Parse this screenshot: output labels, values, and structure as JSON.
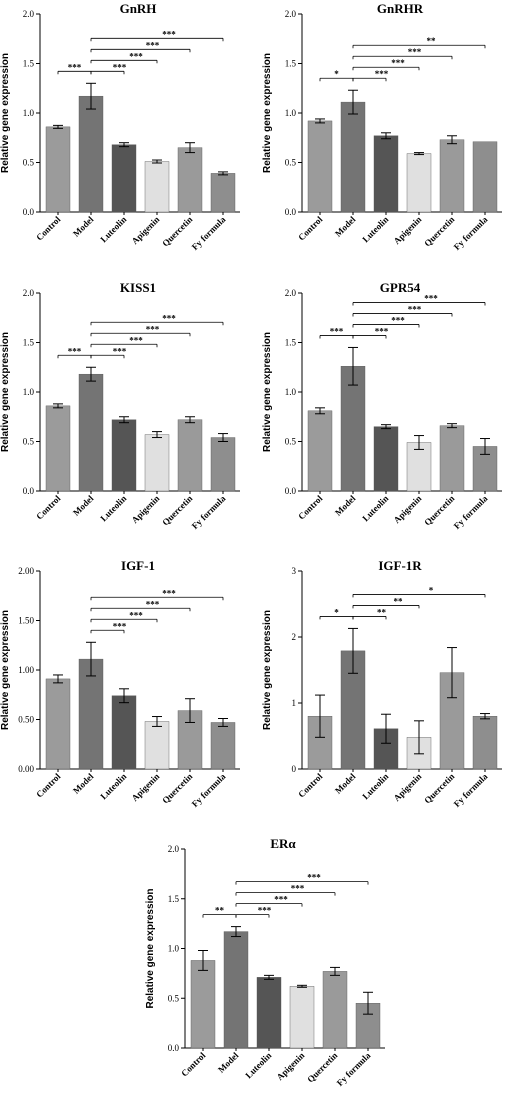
{
  "figure": "Gene expression panels",
  "chart_data": [
    {
      "type": "bar",
      "title": "GnRH",
      "ylabel": "Relative gene expression",
      "categories": [
        "Control",
        "Model",
        "Luteolin",
        "Apigenin",
        "Quercetin",
        "Fy formula"
      ],
      "values": [
        0.86,
        1.17,
        0.68,
        0.51,
        0.65,
        0.39
      ],
      "errors": [
        0.015,
        0.13,
        0.02,
        0.015,
        0.05,
        0.015
      ],
      "colors": [
        "#9b9b9b",
        "#747474",
        "#555555",
        "#e0e0e0",
        "#9a9a9a",
        "#8e8e8e"
      ],
      "ylim": [
        0,
        2.0
      ],
      "yticks": [
        "0.0",
        "0.5",
        "1.0",
        "1.5",
        "2.0"
      ],
      "ytick_values": [
        0,
        0.5,
        1.0,
        1.5,
        2.0
      ],
      "significance": [
        {
          "from": 0,
          "to": 1,
          "label": "***"
        },
        {
          "from": 1,
          "to": 2,
          "label": "***"
        },
        {
          "from": 1,
          "to": 3,
          "label": "***"
        },
        {
          "from": 1,
          "to": 4,
          "label": "***"
        },
        {
          "from": 1,
          "to": 5,
          "label": "***"
        }
      ]
    },
    {
      "type": "bar",
      "title": "GnRHR",
      "ylabel": "Relative gene expression",
      "categories": [
        "Control",
        "Model",
        "Luteolin",
        "Apigenin",
        "Quercetin",
        "Fy formula"
      ],
      "values": [
        0.92,
        1.11,
        0.77,
        0.59,
        0.73,
        0.71
      ],
      "errors": [
        0.02,
        0.12,
        0.03,
        0.01,
        0.04,
        0.0
      ],
      "colors": [
        "#9b9b9b",
        "#747474",
        "#555555",
        "#e0e0e0",
        "#9a9a9a",
        "#8e8e8e"
      ],
      "ylim": [
        0,
        2.0
      ],
      "yticks": [
        "0.0",
        "0.5",
        "1.0",
        "1.5",
        "2.0"
      ],
      "ytick_values": [
        0,
        0.5,
        1.0,
        1.5,
        2.0
      ],
      "significance": [
        {
          "from": 0,
          "to": 1,
          "label": "*"
        },
        {
          "from": 1,
          "to": 2,
          "label": "***"
        },
        {
          "from": 1,
          "to": 3,
          "label": "***"
        },
        {
          "from": 1,
          "to": 4,
          "label": "***"
        },
        {
          "from": 1,
          "to": 5,
          "label": "**"
        }
      ]
    },
    {
      "type": "bar",
      "title": "KISS1",
      "ylabel": "Relative gene expression",
      "categories": [
        "Control",
        "Model",
        "Luteolin",
        "Apigenin",
        "Quercetin",
        "Fy formula"
      ],
      "values": [
        0.86,
        1.18,
        0.72,
        0.57,
        0.72,
        0.54
      ],
      "errors": [
        0.02,
        0.07,
        0.03,
        0.03,
        0.03,
        0.04
      ],
      "colors": [
        "#9b9b9b",
        "#747474",
        "#555555",
        "#e0e0e0",
        "#9a9a9a",
        "#8e8e8e"
      ],
      "ylim": [
        0,
        2.0
      ],
      "yticks": [
        "0.0",
        "0.5",
        "1.0",
        "1.5",
        "2.0"
      ],
      "ytick_values": [
        0,
        0.5,
        1.0,
        1.5,
        2.0
      ],
      "significance": [
        {
          "from": 0,
          "to": 1,
          "label": "***"
        },
        {
          "from": 1,
          "to": 2,
          "label": "***"
        },
        {
          "from": 1,
          "to": 3,
          "label": "***"
        },
        {
          "from": 1,
          "to": 4,
          "label": "***"
        },
        {
          "from": 1,
          "to": 5,
          "label": "***"
        }
      ]
    },
    {
      "type": "bar",
      "title": "GPR54",
      "ylabel": "Relative gene expression",
      "categories": [
        "Control",
        "Model",
        "Luteolin",
        "Apigenin",
        "Quercetin",
        "Fy formula"
      ],
      "values": [
        0.81,
        1.26,
        0.65,
        0.49,
        0.66,
        0.45
      ],
      "errors": [
        0.03,
        0.19,
        0.02,
        0.07,
        0.02,
        0.08
      ],
      "colors": [
        "#9b9b9b",
        "#747474",
        "#555555",
        "#e0e0e0",
        "#9a9a9a",
        "#8e8e8e"
      ],
      "ylim": [
        0,
        2.0
      ],
      "yticks": [
        "0.0",
        "0.5",
        "1.0",
        "1.5",
        "2.0"
      ],
      "ytick_values": [
        0,
        0.5,
        1.0,
        1.5,
        2.0
      ],
      "significance": [
        {
          "from": 0,
          "to": 1,
          "label": "***"
        },
        {
          "from": 1,
          "to": 2,
          "label": "***"
        },
        {
          "from": 1,
          "to": 3,
          "label": "***"
        },
        {
          "from": 1,
          "to": 4,
          "label": "***"
        },
        {
          "from": 1,
          "to": 5,
          "label": "***"
        }
      ]
    },
    {
      "type": "bar",
      "title": "IGF-1",
      "ylabel": "Relative gene expression",
      "categories": [
        "Control",
        "Model",
        "Luteolin",
        "Apigenin",
        "Quercetin",
        "Fy formula"
      ],
      "values": [
        0.91,
        1.11,
        0.74,
        0.48,
        0.59,
        0.47
      ],
      "errors": [
        0.04,
        0.17,
        0.07,
        0.05,
        0.12,
        0.04
      ],
      "colors": [
        "#9b9b9b",
        "#747474",
        "#555555",
        "#e0e0e0",
        "#9a9a9a",
        "#8e8e8e"
      ],
      "ylim": [
        0,
        2.0
      ],
      "yticks": [
        "0.00",
        "0.50",
        "1.00",
        "1.50",
        "2.00"
      ],
      "ytick_values": [
        0,
        0.5,
        1.0,
        1.5,
        2.0
      ],
      "significance": [
        {
          "from": 1,
          "to": 2,
          "label": "***"
        },
        {
          "from": 1,
          "to": 3,
          "label": "***"
        },
        {
          "from": 1,
          "to": 4,
          "label": "***"
        },
        {
          "from": 1,
          "to": 5,
          "label": "***"
        }
      ]
    },
    {
      "type": "bar",
      "title": "IGF-1R",
      "ylabel": "Relative gene expression",
      "categories": [
        "Control",
        "Model",
        "Luteolin",
        "Apigenin",
        "Quercetin",
        "Fy formula"
      ],
      "values": [
        0.8,
        1.79,
        0.61,
        0.48,
        1.46,
        0.8
      ],
      "errors": [
        0.32,
        0.34,
        0.22,
        0.25,
        0.38,
        0.04
      ],
      "colors": [
        "#9b9b9b",
        "#747474",
        "#555555",
        "#e0e0e0",
        "#9a9a9a",
        "#8e8e8e"
      ],
      "ylim": [
        0,
        3
      ],
      "yticks": [
        "0",
        "1",
        "2",
        "3"
      ],
      "ytick_values": [
        0,
        1,
        2,
        3
      ],
      "significance": [
        {
          "from": 0,
          "to": 1,
          "label": "*"
        },
        {
          "from": 1,
          "to": 2,
          "label": "**"
        },
        {
          "from": 1,
          "to": 3,
          "label": "**"
        },
        {
          "from": 1,
          "to": 5,
          "label": "*"
        }
      ]
    },
    {
      "type": "bar",
      "title": "ERα",
      "ylabel": "Relative gene expression",
      "categories": [
        "Control",
        "Model",
        "Luteolin",
        "Apigenin",
        "Quercetin",
        "Fy formula"
      ],
      "values": [
        0.88,
        1.17,
        0.71,
        0.62,
        0.77,
        0.45
      ],
      "errors": [
        0.1,
        0.05,
        0.02,
        0.01,
        0.04,
        0.11
      ],
      "colors": [
        "#9b9b9b",
        "#747474",
        "#555555",
        "#e0e0e0",
        "#9a9a9a",
        "#8e8e8e"
      ],
      "ylim": [
        0,
        2.0
      ],
      "yticks": [
        "0.0",
        "0.5",
        "1.0",
        "1.5",
        "2.0"
      ],
      "ytick_values": [
        0,
        0.5,
        1.0,
        1.5,
        2.0
      ],
      "significance": [
        {
          "from": 0,
          "to": 1,
          "label": "**"
        },
        {
          "from": 1,
          "to": 2,
          "label": "***"
        },
        {
          "from": 1,
          "to": 3,
          "label": "***"
        },
        {
          "from": 1,
          "to": 4,
          "label": "***"
        },
        {
          "from": 1,
          "to": 5,
          "label": "***"
        }
      ]
    }
  ]
}
